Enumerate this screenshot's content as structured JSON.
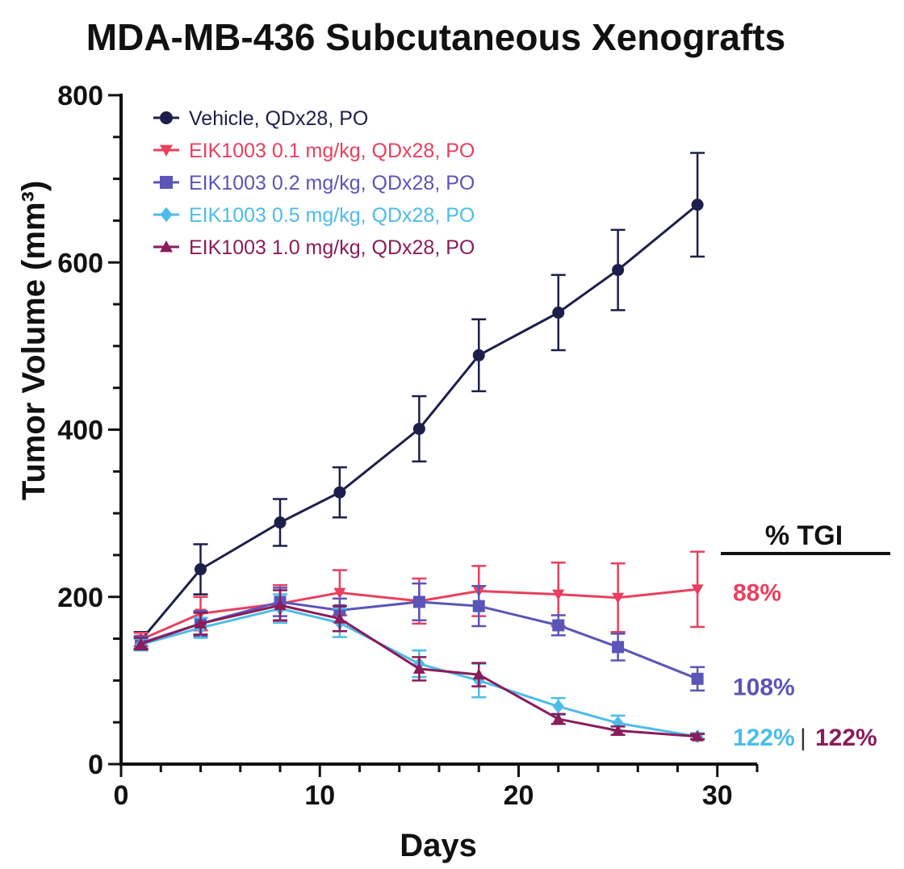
{
  "chart_data": {
    "type": "line",
    "title": "MDA-MB-436 Subcutaneous Xenografts",
    "xlabel": "Days",
    "ylabel": "Tumor Volume (mm³)",
    "xlim": [
      0,
      32
    ],
    "ylim": [
      0,
      800
    ],
    "x_ticks": [
      "0",
      "10",
      "20",
      "30"
    ],
    "y_ticks": [
      "0",
      "200",
      "400",
      "600",
      "800"
    ],
    "legend_position": "top-left",
    "series": [
      {
        "name": "Vehicle, QDx28, PO",
        "color": "#1c1f4a",
        "marker": "circle",
        "x": [
          1,
          4,
          8,
          11,
          15,
          18,
          22,
          25,
          29
        ],
        "y": [
          148,
          233,
          289,
          325,
          401,
          489,
          540,
          591,
          669
        ],
        "err": [
          10,
          30,
          28,
          30,
          39,
          43,
          45,
          48,
          62
        ]
      },
      {
        "name": "EIK1003 0.1 mg/kg, QDx28, PO",
        "color": "#e8405e",
        "marker": "triangle-down",
        "x": [
          1,
          4,
          8,
          11,
          15,
          18,
          22,
          25,
          29
        ],
        "y": [
          149,
          180,
          192,
          205,
          195,
          207,
          203,
          199,
          209
        ],
        "err": [
          8,
          20,
          22,
          27,
          27,
          30,
          38,
          41,
          45
        ]
      },
      {
        "name": "EIK1003 0.2 mg/kg, QDx28, PO",
        "color": "#5b55b8",
        "marker": "square",
        "x": [
          1,
          4,
          8,
          11,
          15,
          18,
          22,
          25,
          29
        ],
        "y": [
          145,
          168,
          194,
          184,
          194,
          189,
          166,
          140,
          102
        ],
        "err": [
          8,
          15,
          17,
          14,
          22,
          24,
          12,
          16,
          14
        ]
      },
      {
        "name": "EIK1003 0.5 mg/kg, QDx28, PO",
        "color": "#4cbcea",
        "marker": "diamond",
        "x": [
          1,
          4,
          8,
          11,
          15,
          18,
          22,
          25,
          29
        ],
        "y": [
          143,
          163,
          186,
          169,
          120,
          100,
          69,
          49,
          33
        ],
        "err": [
          7,
          12,
          17,
          17,
          16,
          20,
          10,
          9,
          4
        ]
      },
      {
        "name": "EIK1003 1.0 mg/kg, QDx28, PO",
        "color": "#8a1c5a",
        "marker": "triangle-up",
        "x": [
          1,
          4,
          8,
          11,
          15,
          18,
          22,
          25,
          29
        ],
        "y": [
          144,
          168,
          190,
          174,
          114,
          107,
          54,
          40,
          33
        ],
        "err": [
          7,
          13,
          18,
          15,
          14,
          14,
          6,
          5,
          3
        ]
      }
    ],
    "annotations": {
      "tgi_header": "% TGI",
      "values": [
        {
          "text": "88%",
          "color": "#e8405e",
          "y": 206
        },
        {
          "text": "108%",
          "color": "#5b55b8",
          "y": 93
        },
        {
          "text": "122%",
          "color": "#4cbcea",
          "y": 33
        },
        {
          "text": "|",
          "color": "#333333",
          "y": 33
        },
        {
          "text": "122%",
          "color": "#8a1c5a",
          "y": 33
        }
      ]
    }
  }
}
